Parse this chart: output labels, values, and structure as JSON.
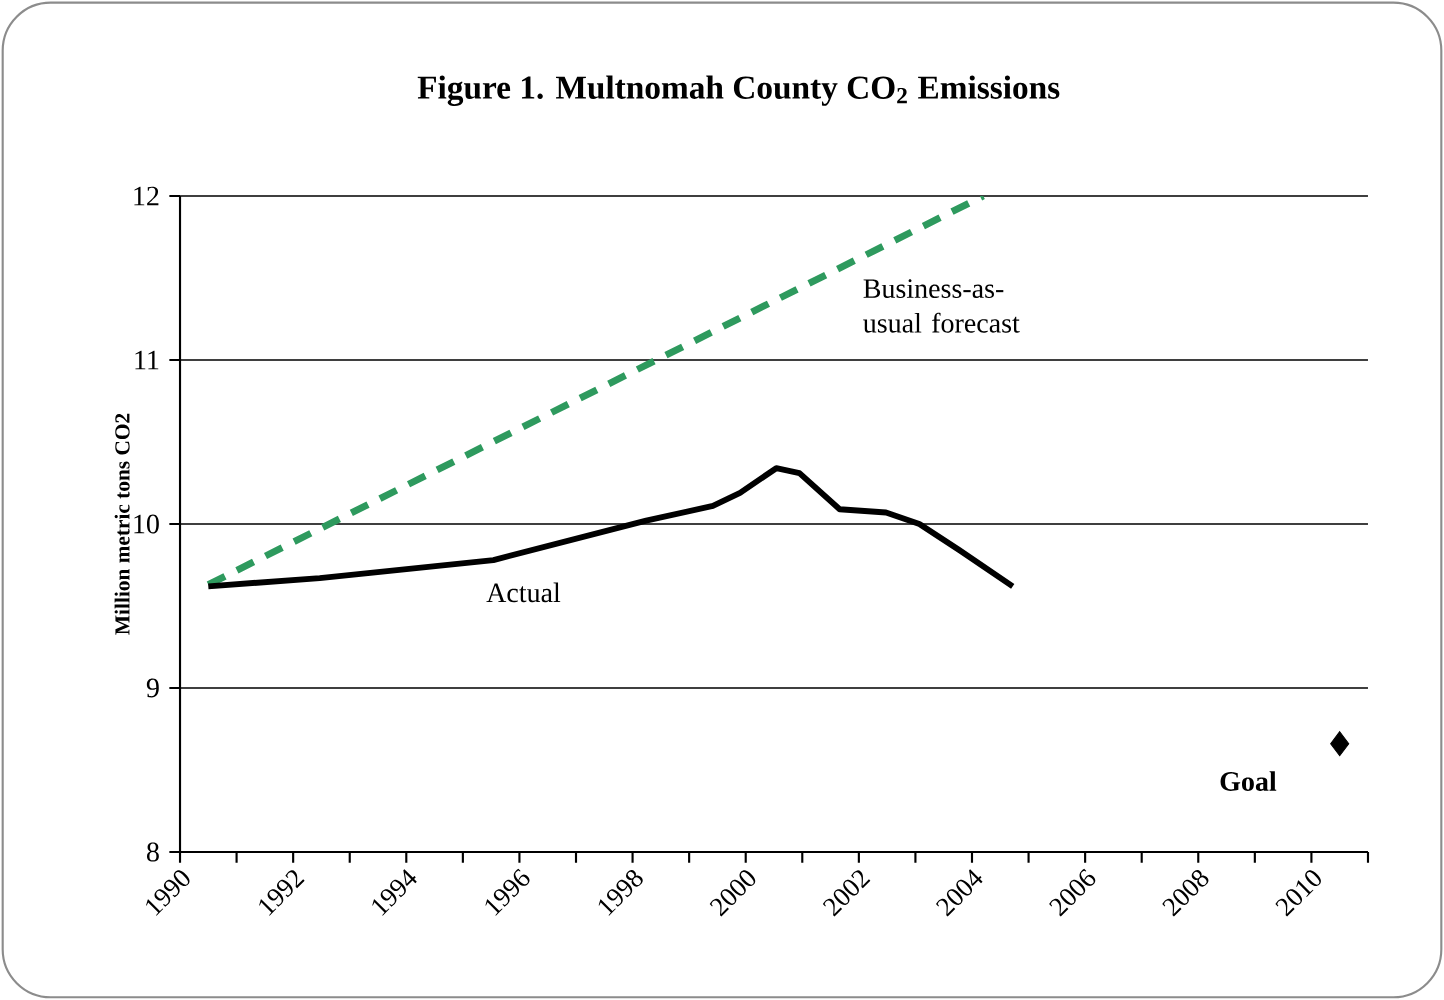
{
  "chart_data": {
    "type": "line",
    "title": "Figure 1.  Multnomah County CO$_{2}$ Emissions",
    "ylabel": "Million metric tons CO2",
    "xlim": [
      1990,
      2011
    ],
    "ylim": [
      8,
      12
    ],
    "xticks": [
      1990,
      {
        "value": 1991,
        "label": null
      },
      1992,
      {
        "value": 1993,
        "label": null
      },
      1994,
      {
        "value": 1995,
        "label": null
      },
      1996,
      {
        "value": 1997,
        "label": null
      },
      1998,
      {
        "value": 1999,
        "label": null
      },
      2000,
      {
        "value": 2001,
        "label": null
      },
      2002,
      {
        "value": 2003,
        "label": null
      },
      2004,
      {
        "value": 2005,
        "label": null
      },
      2006,
      {
        "value": 2007,
        "label": null
      },
      2008,
      {
        "value": 2009,
        "label": null
      },
      2010,
      {
        "value": 2011,
        "label": null
      }
    ],
    "yticks": [
      8,
      9,
      10,
      11,
      12
    ],
    "grid": "y",
    "series": [
      {
        "name": "Business-as-usual forecast",
        "line_style": "dashed",
        "color": "#2e9a5e",
        "x": [
          1990.5,
          2004.2
        ],
        "values": [
          9.63,
          12.0
        ]
      },
      {
        "name": "Actual",
        "line_style": "solid",
        "color": "#000000",
        "x": [
          1990.5,
          1992.47,
          1995.54,
          1998.24,
          1999.42,
          1999.9,
          2000.54,
          2000.95,
          2001.66,
          2002.48,
          2003.07,
          2003.78,
          2004.72
        ],
        "values": [
          9.62,
          9.67,
          9.78,
          10.02,
          10.11,
          10.19,
          10.34,
          10.31,
          10.09,
          10.07,
          10.0,
          9.84,
          9.62
        ]
      },
      {
        "name": "Goal",
        "type": "scatter",
        "marker": "diamond",
        "color": "#000000",
        "x": [
          2010.5
        ],
        "values": [
          8.66
        ]
      }
    ]
  }
}
